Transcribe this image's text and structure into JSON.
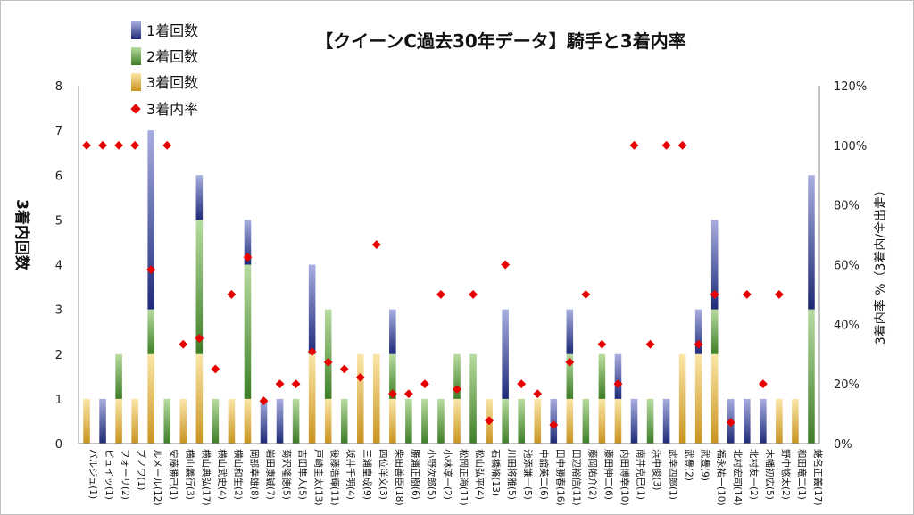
{
  "chart_data": {
    "type": "bar",
    "stacked": true,
    "title": "【クイーンC過去30年データ】騎手と3着内率",
    "ylabel": "3着内回数",
    "y2label": "3着内率 %（3着内/全出走）",
    "ylim": [
      0,
      8
    ],
    "y2lim": [
      0,
      120
    ],
    "yticks": [
      "0",
      "1",
      "2",
      "3",
      "4",
      "5",
      "6",
      "7",
      "8"
    ],
    "y2ticks": [
      "0%",
      "20%",
      "40%",
      "60%",
      "80%",
      "100%",
      "120%"
    ],
    "legend_position": "top-left",
    "series": [
      {
        "name": "1着回数",
        "color": "#2e3a8c"
      },
      {
        "name": "2着回数",
        "color": "#5a9a3a"
      },
      {
        "name": "3着回数",
        "color": "#e0b040"
      },
      {
        "name": "3着内率",
        "color": "#e60000"
      }
    ],
    "categories": [
      "バルジュ(1)",
      "ビュイッ(1)",
      "フォーリ(2)",
      "ブノワ(1)",
      "ルメール(12)",
      "安藤勝己(1)",
      "横山義行(3)",
      "横山典弘(17)",
      "横山武史(4)",
      "横山和生(2)",
      "岡部幸雄(8)",
      "岩田康誠(7)",
      "菊沢隆徳(5)",
      "吉田隼人(5)",
      "戸崎圭太(13)",
      "後藤浩輝(11)",
      "坂井千明(4)",
      "三浦皇成(9)",
      "四位洋文(3)",
      "柴田善臣(18)",
      "勝浦正樹(6)",
      "小野次郎(5)",
      "小林淳一(2)",
      "松岡正海(11)",
      "松山弘平(4)",
      "石橋脩(13)",
      "川田将雅(5)",
      "池添謙一(5)",
      "中舘英二(6)",
      "田中勝春(16)",
      "田辺裕信(11)",
      "藤岡佑介(2)",
      "藤田伸二(6)",
      "内田博幸(10)",
      "南井克巳(1)",
      "浜中俊(3)",
      "武幸四郎(1)",
      "武豊(2)",
      "武豊(9)",
      "福永祐一(10)",
      "北村宏司(14)",
      "北村友一(2)",
      "木幡初広(5)",
      "野中悠太(2)",
      "和田竜二(1)",
      "蛯名正義(17)"
    ],
    "first": [
      0,
      1,
      0,
      0,
      4,
      0,
      0,
      1,
      0,
      0,
      1,
      1,
      1,
      0,
      2,
      0,
      0,
      0,
      0,
      1,
      0,
      0,
      0,
      0,
      0,
      0,
      2,
      0,
      0,
      1,
      1,
      0,
      0,
      1,
      1,
      0,
      1,
      0,
      1,
      2,
      1,
      1,
      1,
      0,
      0,
      3
    ],
    "second": [
      0,
      0,
      1,
      0,
      1,
      1,
      0,
      3,
      1,
      0,
      3,
      0,
      0,
      1,
      0,
      2,
      1,
      0,
      0,
      1,
      1,
      1,
      1,
      1,
      2,
      0,
      1,
      1,
      0,
      0,
      1,
      1,
      1,
      0,
      0,
      1,
      0,
      0,
      0,
      1,
      0,
      0,
      0,
      0,
      0,
      3
    ],
    "third": [
      1,
      0,
      1,
      1,
      2,
      0,
      1,
      2,
      0,
      1,
      1,
      0,
      0,
      0,
      2,
      1,
      0,
      2,
      2,
      1,
      0,
      0,
      0,
      1,
      0,
      1,
      0,
      0,
      1,
      0,
      1,
      0,
      1,
      1,
      0,
      0,
      0,
      2,
      2,
      2,
      0,
      0,
      0,
      1,
      1,
      0
    ],
    "rate": [
      100,
      100,
      100,
      100,
      58.3,
      100,
      33.3,
      35.3,
      25,
      50,
      62.5,
      14.3,
      20,
      20,
      30.8,
      27.3,
      25,
      22.2,
      66.7,
      16.7,
      16.7,
      20,
      50,
      18.2,
      50,
      7.7,
      60,
      20,
      16.7,
      6.3,
      27.3,
      50,
      33.3,
      20,
      100,
      33.3,
      100,
      100,
      33.3,
      50,
      7.1,
      50,
      20,
      50,
      null,
      null
    ]
  }
}
